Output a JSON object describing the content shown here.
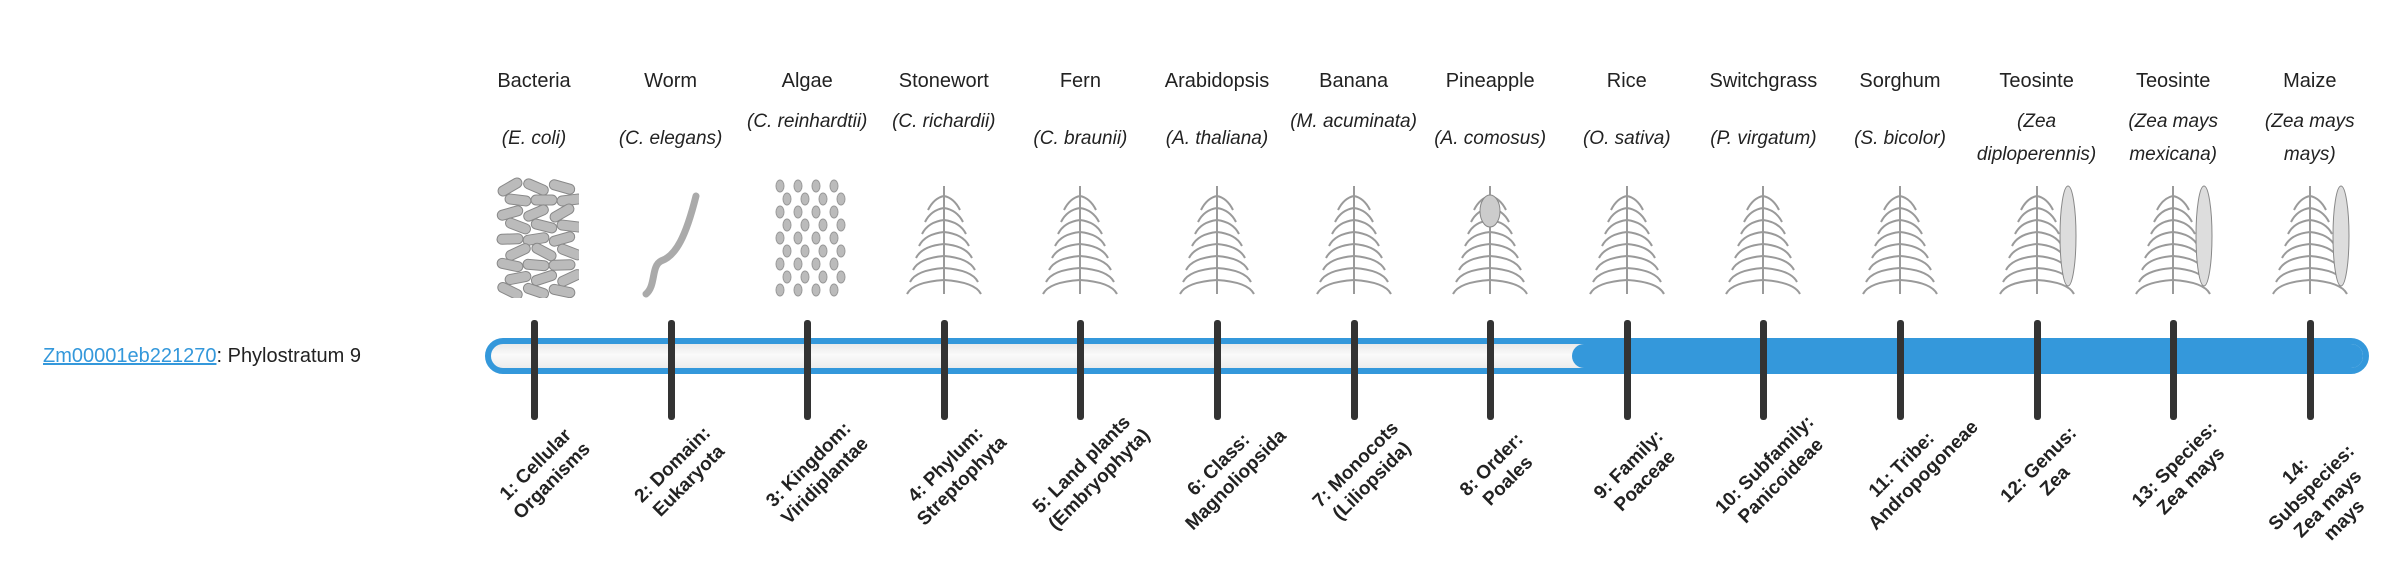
{
  "gene": {
    "id": "Zm00001eb221270",
    "suffix": ": Phylostratum 9"
  },
  "bar": {
    "phylostratum": 9,
    "total_strata": 14,
    "accent_color": "#3498db",
    "tick_color": "#333333"
  },
  "columns": [
    {
      "common": "Bacteria",
      "scientific": "(E. coli)",
      "rank": "1: Cellular Organisms",
      "icon": "bacteria-icon"
    },
    {
      "common": "Worm",
      "scientific": "(C. elegans)",
      "rank": "2: Domain: Eukaryota",
      "icon": "worm-icon"
    },
    {
      "common": "Algae",
      "scientific": "(C. reinhardtii)",
      "rank": "3: Kingdom: Viridiplantae",
      "icon": "algae-icon"
    },
    {
      "common": "Stonewort",
      "scientific": "(C. richardii)",
      "rank": "4: Phylum: Streptophyta",
      "icon": "stonewort-icon"
    },
    {
      "common": "Fern",
      "scientific": "(C. braunii)",
      "rank": "5: Land plants (Embryophyta)",
      "icon": "fern-icon"
    },
    {
      "common": "Arabidopsis",
      "scientific": "(A. thaliana)",
      "rank": "6: Class: Magnoliopsida",
      "icon": "arabidopsis-icon"
    },
    {
      "common": "Banana",
      "scientific": "(M. acuminata)",
      "rank": "7: Monocots (Liliopsida)",
      "icon": "banana-icon"
    },
    {
      "common": "Pineapple",
      "scientific": "(A. comosus)",
      "rank": "8: Order: Poales",
      "icon": "pineapple-icon"
    },
    {
      "common": "Rice",
      "scientific": "(O. sativa)",
      "rank": "9: Family: Poaceae",
      "icon": "rice-icon"
    },
    {
      "common": "Switchgrass",
      "scientific": "(P. virgatum)",
      "rank": "10: Subfamily: Panicoideae",
      "icon": "switchgrass-icon"
    },
    {
      "common": "Sorghum",
      "scientific": "(S. bicolor)",
      "rank": "11: Tribe: Andropogoneae",
      "icon": "sorghum-icon"
    },
    {
      "common": "Teosinte",
      "scientific": "(Zea diploperennis)",
      "rank": "12: Genus: Zea",
      "icon": "teosinte-icon"
    },
    {
      "common": "Teosinte",
      "scientific": "(Zea mays mexicana)",
      "rank": "13: Species: Zea mays",
      "icon": "teosinte-mexicana-icon"
    },
    {
      "common": "Maize",
      "scientific": "(Zea mays mays)",
      "rank": "14: Subspecies: Zea mays mays",
      "icon": "maize-icon"
    }
  ]
}
